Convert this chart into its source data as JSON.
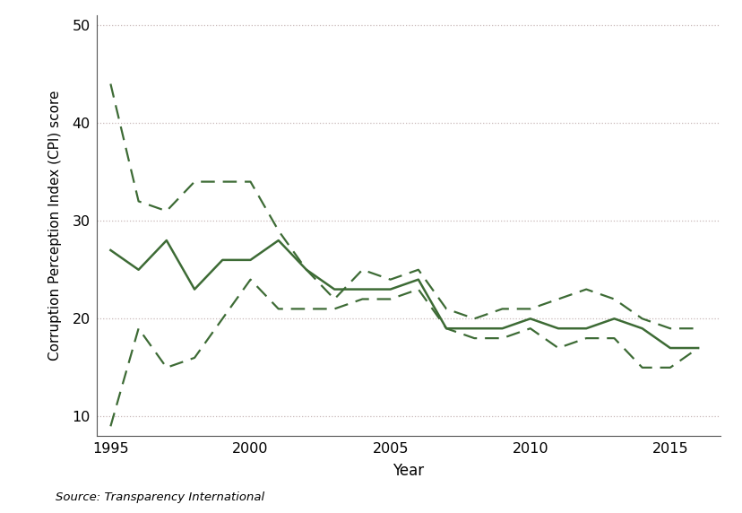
{
  "years": [
    1995,
    1996,
    1997,
    1998,
    1999,
    2000,
    2001,
    2002,
    2003,
    2004,
    2005,
    2006,
    2007,
    2008,
    2009,
    2010,
    2011,
    2012,
    2013,
    2014,
    2015,
    2016
  ],
  "cpi": [
    27,
    25,
    28,
    23,
    26,
    26,
    28,
    25,
    23,
    23,
    23,
    24,
    19,
    19,
    19,
    20,
    19,
    19,
    20,
    19,
    17,
    17
  ],
  "ci_upper": [
    44,
    32,
    31,
    34,
    34,
    34,
    29,
    25,
    22,
    25,
    24,
    25,
    21,
    20,
    21,
    21,
    22,
    23,
    22,
    20,
    19,
    19
  ],
  "ci_lower": [
    9,
    19,
    15,
    16,
    20,
    24,
    21,
    21,
    21,
    22,
    22,
    23,
    19,
    18,
    18,
    19,
    17,
    18,
    18,
    15,
    15,
    17
  ],
  "line_color": "#3d6b35",
  "ylabel": "Corruption Perception Index (CPI) score",
  "xlabel": "Year",
  "source_text": "Source: Transparency International",
  "ylim": [
    8,
    51
  ],
  "yticks": [
    10,
    20,
    30,
    40,
    50
  ],
  "xticks": [
    1995,
    2000,
    2005,
    2010,
    2015
  ],
  "xlim": [
    1994.5,
    2016.8
  ],
  "bg_color": "#ffffff",
  "grid_color": "#c8b8b8"
}
